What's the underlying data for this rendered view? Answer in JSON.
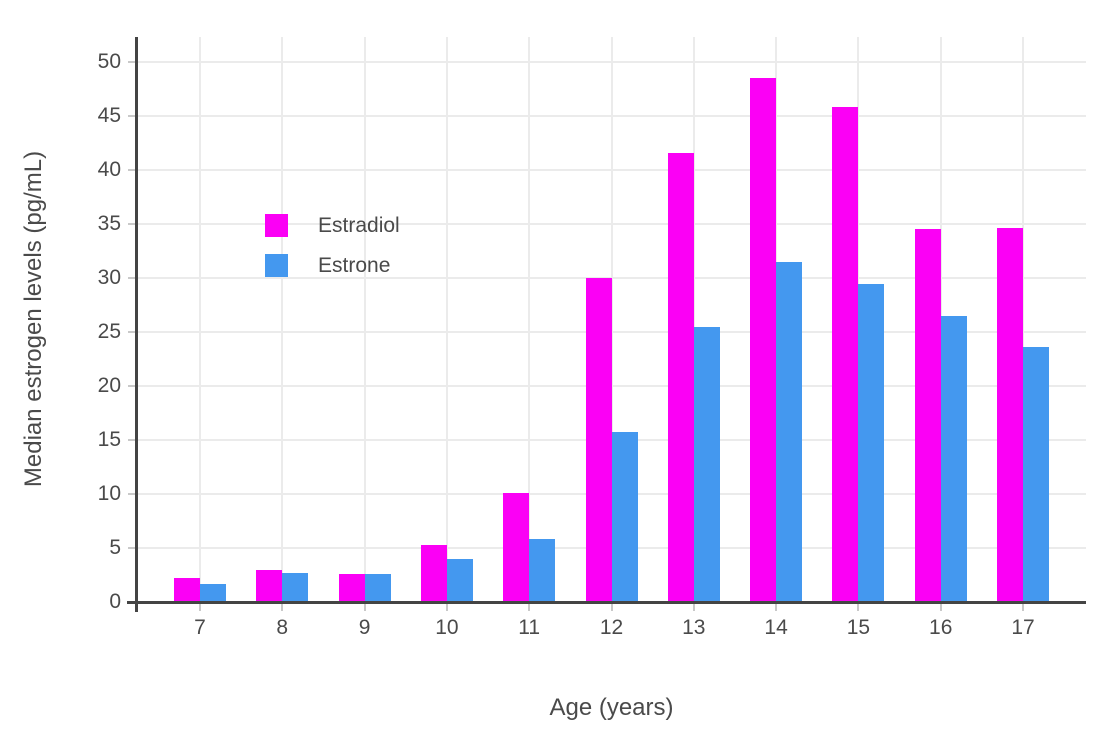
{
  "chart_data": {
    "type": "bar",
    "title": "",
    "categories": [
      "7",
      "8",
      "9",
      "10",
      "11",
      "12",
      "13",
      "14",
      "15",
      "16",
      "17"
    ],
    "series": [
      {
        "name": "Estradiol",
        "color": "#fb00f5",
        "values": [
          2.2,
          3.0,
          2.6,
          5.3,
          10.1,
          30.0,
          41.6,
          48.5,
          45.8,
          34.5,
          34.6
        ]
      },
      {
        "name": "Estrone",
        "color": "#4498ef",
        "values": [
          1.7,
          2.7,
          2.6,
          4.0,
          5.8,
          15.7,
          25.5,
          31.5,
          29.4,
          26.5,
          23.6
        ]
      }
    ],
    "xlabel": "Age (years)",
    "ylabel": "Median estrogen levels (pg/mL)",
    "ylim": [
      0,
      52.3
    ],
    "yticks": [
      0,
      5,
      10,
      15,
      20,
      25,
      30,
      35,
      40,
      45,
      50
    ],
    "grid": true,
    "legend_position": "inside-top-left",
    "layout": {
      "background": "#ffffff",
      "axis_line_color": "#444444",
      "gridline_color": "#ebebeb",
      "tick_mark_color": "#c9c9c9",
      "text_color": "#4a4a4a"
    }
  }
}
